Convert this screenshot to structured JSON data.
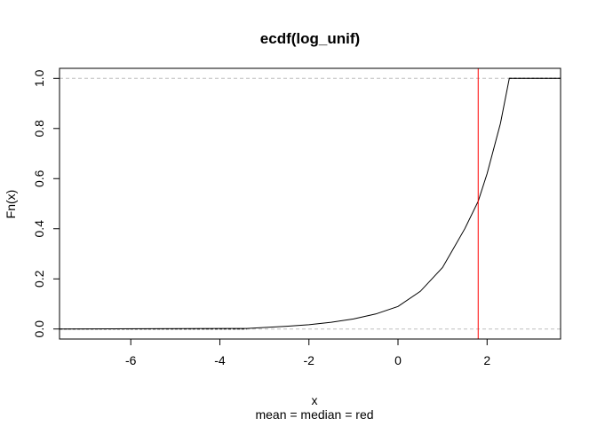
{
  "chart_data": {
    "type": "line",
    "title": "ecdf(log_unif)",
    "xlabel": "x",
    "ylabel": "Fn(x)",
    "subtitle": "mean = median = red",
    "xlim": [
      -7.6,
      3.65
    ],
    "ylim": [
      -0.04,
      1.04
    ],
    "x_ticks": [
      -6,
      -4,
      -2,
      0,
      2
    ],
    "x_tick_labels": [
      "-6",
      "-4",
      "-2",
      "0",
      "2"
    ],
    "y_ticks": [
      0.0,
      0.2,
      0.4,
      0.6,
      0.8,
      1.0
    ],
    "y_tick_labels": [
      "0.0",
      "0.2",
      "0.4",
      "0.6",
      "0.8",
      "1.0"
    ],
    "reference_lines": [
      0,
      1
    ],
    "colors": {
      "curve": "#000000",
      "mean_median": "#ff0000",
      "reference": "#bebebe"
    },
    "mean_median_x": 1.8,
    "series": [
      {
        "x": [
          -7.6,
          -3.4,
          -3.0,
          -2.5,
          -2.0,
          -1.5,
          -1.0,
          -0.5,
          0.0,
          0.5,
          1.0,
          1.5,
          1.8,
          2.0,
          2.3,
          2.5,
          3.65
        ],
        "values": [
          0.0,
          0.002,
          0.006,
          0.011,
          0.017,
          0.027,
          0.04,
          0.06,
          0.09,
          0.15,
          0.245,
          0.4,
          0.51,
          0.62,
          0.82,
          1.0,
          1.0
        ]
      }
    ]
  }
}
